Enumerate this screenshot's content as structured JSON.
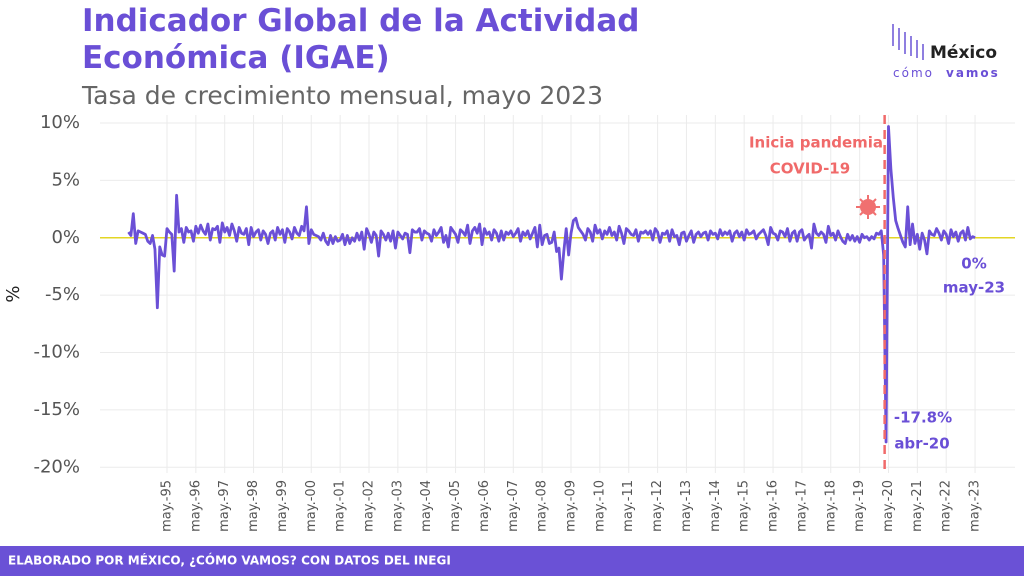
{
  "chart_data": {
    "type": "line",
    "title": [
      "Indicador Global de la Actividad",
      "Económica (IGAE)"
    ],
    "subtitle": "Tasa de crecimiento mensual, mayo 2023",
    "y_label": "%",
    "logo": [
      "México",
      "cómo",
      "vamos"
    ],
    "footer": "ELABORADO POR MÉXICO, ¿CÓMO VAMOS? CON DATOS DEL INEGI",
    "annotations": [
      "Inicia pandemia",
      "COVID-19",
      "0%",
      "may-23",
      "-17.8%",
      "abr-20"
    ],
    "ylim": [
      -20.5,
      10.7
    ],
    "yticks": [
      {
        "value": 10,
        "label": "10%"
      },
      {
        "value": 5,
        "label": "5%"
      },
      {
        "value": 0,
        "label": "0%"
      },
      {
        "value": -5,
        "label": "-5%"
      },
      {
        "value": -10,
        "label": "-10%"
      },
      {
        "value": -15,
        "label": "-15%"
      },
      {
        "value": -20,
        "label": "-20%"
      }
    ],
    "grid": true,
    "zero_line_color": "#e3d624",
    "pandemic_line_color": "#f06a6a",
    "categories": [
      null,
      null,
      null,
      null,
      null,
      null,
      null,
      null,
      null,
      null,
      null,
      null,
      null,
      null,
      null,
      null,
      "may.-95",
      null,
      null,
      null,
      null,
      null,
      null,
      null,
      null,
      null,
      null,
      null,
      "may.-96",
      null,
      null,
      null,
      null,
      null,
      null,
      null,
      null,
      null,
      null,
      null,
      "may.-97",
      null,
      null,
      null,
      null,
      null,
      null,
      null,
      null,
      null,
      null,
      null,
      "may.-98",
      null,
      null,
      null,
      null,
      null,
      null,
      null,
      null,
      null,
      null,
      null,
      "may.-99",
      null,
      null,
      null,
      null,
      null,
      null,
      null,
      null,
      null,
      null,
      null,
      "may.-00",
      null,
      null,
      null,
      null,
      null,
      null,
      null,
      null,
      null,
      null,
      null,
      "may.-01",
      null,
      null,
      null,
      null,
      null,
      null,
      null,
      null,
      null,
      null,
      null,
      "may.-02",
      null,
      null,
      null,
      null,
      null,
      null,
      null,
      null,
      null,
      null,
      null,
      "may.-03",
      null,
      null,
      null,
      null,
      null,
      null,
      null,
      null,
      null,
      null,
      null,
      "may.-04",
      null,
      null,
      null,
      null,
      null,
      null,
      null,
      null,
      null,
      null,
      null,
      "may.-05",
      null,
      null,
      null,
      null,
      null,
      null,
      null,
      null,
      null,
      null,
      null,
      "may.-06",
      null,
      null,
      null,
      null,
      null,
      null,
      null,
      null,
      null,
      null,
      null,
      "may.-07",
      null,
      null,
      null,
      null,
      null,
      null,
      null,
      null,
      null,
      null,
      null,
      "may.-08",
      null,
      null,
      null,
      null,
      null,
      null,
      null,
      null,
      null,
      null,
      null,
      "may.-09",
      null,
      null,
      null,
      null,
      null,
      null,
      null,
      null,
      null,
      null,
      null,
      "may.-10",
      null,
      null,
      null,
      null,
      null,
      null,
      null,
      null,
      null,
      null,
      null,
      "may.-11",
      null,
      null,
      null,
      null,
      null,
      null,
      null,
      null,
      null,
      null,
      null,
      "may.-12",
      null,
      null,
      null,
      null,
      null,
      null,
      null,
      null,
      null,
      null,
      null,
      "may.-13",
      null,
      null,
      null,
      null,
      null,
      null,
      null,
      null,
      null,
      null,
      null,
      "may.-14",
      null,
      null,
      null,
      null,
      null,
      null,
      null,
      null,
      null,
      null,
      null,
      "may.-15",
      null,
      null,
      null,
      null,
      null,
      null,
      null,
      null,
      null,
      null,
      null,
      "may.-16",
      null,
      null,
      null,
      null,
      null,
      null,
      null,
      null,
      null,
      null,
      null,
      "may.-17",
      null,
      null,
      null,
      null,
      null,
      null,
      null,
      null,
      null,
      null,
      null,
      "may.-18",
      null,
      null,
      null,
      null,
      null,
      null,
      null,
      null,
      null,
      null,
      null,
      "may.-19",
      null,
      null,
      null,
      null,
      null,
      null,
      null,
      null,
      null,
      null,
      null,
      "may.-20",
      null,
      null,
      null,
      null,
      null,
      null,
      null,
      null,
      null,
      null,
      null,
      "may.-21",
      null,
      null,
      null,
      null,
      null,
      null,
      null,
      null,
      null,
      null,
      null,
      "may.-22",
      null,
      null,
      null,
      null,
      null,
      null,
      null,
      null,
      null,
      null,
      null,
      "may.-23"
    ],
    "series": [
      {
        "name": "IGAE",
        "color": "#6b50d6",
        "values": [
          0.5,
          0.2,
          2.1,
          -0.5,
          0.6,
          0.5,
          0.4,
          0.3,
          -0.3,
          -0.5,
          0.2,
          -1.0,
          -6.1,
          -0.8,
          -1.5,
          -1.6,
          0.8,
          0.5,
          0.3,
          -2.9,
          3.7,
          0.5,
          0.8,
          -0.4,
          0.9,
          0.5,
          0.6,
          -0.3,
          1.0,
          0.4,
          1.1,
          0.6,
          0.3,
          1.2,
          -0.2,
          0.8,
          0.7,
          1.0,
          -0.4,
          1.3,
          0.5,
          0.9,
          0.2,
          1.2,
          0.6,
          -0.3,
          0.9,
          0.4,
          0.3,
          0.8,
          -0.6,
          0.9,
          0.1,
          0.5,
          0.7,
          -0.2,
          0.6,
          0.3,
          -0.5,
          0.4,
          0.6,
          -0.2,
          0.9,
          0.3,
          0.7,
          -0.4,
          0.8,
          0.5,
          -0.1,
          0.9,
          0.4,
          0.2,
          1.0,
          0.6,
          2.7,
          -0.5,
          0.7,
          0.3,
          0.2,
          0.1,
          -0.2,
          0.4,
          -0.3,
          -0.6,
          0.2,
          -0.5,
          0.1,
          -0.3,
          -0.2,
          0.3,
          -0.6,
          0.2,
          -0.5,
          0.0,
          -0.3,
          0.4,
          -0.2,
          0.5,
          -1.0,
          0.8,
          0.3,
          -0.4,
          0.5,
          0.2,
          -1.6,
          0.6,
          0.3,
          -0.2,
          0.4,
          -0.3,
          0.6,
          -0.9,
          0.5,
          0.2,
          -0.1,
          0.4,
          0.3,
          -1.3,
          0.7,
          0.5,
          0.5,
          0.8,
          -0.2,
          0.6,
          0.4,
          0.3,
          -0.3,
          0.7,
          0.2,
          0.5,
          0.9,
          -0.4,
          0.2,
          -0.8,
          0.9,
          0.6,
          0.3,
          -0.4,
          0.7,
          0.5,
          0.2,
          1.1,
          -0.5,
          0.6,
          0.9,
          0.4,
          1.2,
          -0.6,
          0.8,
          0.3,
          0.5,
          -0.2,
          0.7,
          0.4,
          -0.3,
          0.6,
          -0.2,
          0.5,
          0.3,
          0.6,
          0.1,
          0.4,
          0.8,
          -0.3,
          0.5,
          0.2,
          0.6,
          -0.1,
          0.4,
          0.9,
          -0.8,
          1.1,
          -0.6,
          0.2,
          0.3,
          -0.5,
          -0.4,
          0.5,
          -1.2,
          -0.9,
          -3.6,
          -1.2,
          0.8,
          -1.5,
          0.4,
          1.5,
          1.7,
          0.9,
          0.6,
          0.3,
          -0.2,
          0.8,
          0.5,
          -0.3,
          1.1,
          0.4,
          0.7,
          -0.1,
          0.6,
          0.3,
          0.9,
          0.2,
          0.5,
          -0.2,
          1.0,
          0.4,
          -0.5,
          0.8,
          0.6,
          0.3,
          0.2,
          0.7,
          -0.3,
          0.5,
          0.4,
          0.6,
          0.3,
          0.6,
          -0.2,
          0.8,
          0.5,
          -0.4,
          0.4,
          0.3,
          0.6,
          -0.3,
          0.7,
          0.1,
          0.2,
          -0.6,
          0.4,
          0.5,
          -0.3,
          0.2,
          0.6,
          -0.4,
          0.3,
          0.5,
          0.1,
          0.4,
          0.5,
          -0.2,
          0.6,
          0.3,
          0.4,
          -0.1,
          0.7,
          0.2,
          0.5,
          0.3,
          0.6,
          -0.3,
          0.4,
          0.6,
          0.1,
          0.5,
          -0.2,
          0.7,
          0.3,
          0.4,
          0.6,
          -0.1,
          0.3,
          0.5,
          0.7,
          0.2,
          -0.6,
          0.9,
          0.4,
          0.3,
          -0.2,
          0.6,
          0.5,
          0.1,
          0.8,
          -0.3,
          0.4,
          0.6,
          -0.3,
          0.5,
          0.7,
          -0.2,
          0.1,
          0.3,
          -0.9,
          1.2,
          0.4,
          0.2,
          0.5,
          0.3,
          -0.4,
          1.0,
          0.2,
          0.4,
          -0.2,
          0.6,
          0.1,
          -0.3,
          -0.5,
          0.3,
          -0.2,
          0.2,
          -0.3,
          0.1,
          -0.4,
          0.3,
          0.0,
          0.1,
          -0.2,
          0.1,
          -0.1,
          0.4,
          0.3,
          0.6,
          -1.5,
          -17.8,
          9.7,
          6.0,
          3.5,
          1.5,
          0.8,
          0.2,
          -0.4,
          -0.8,
          2.7,
          -0.6,
          1.2,
          -0.5,
          0.3,
          -1.0,
          0.4,
          -0.2,
          -1.4,
          0.6,
          0.3,
          0.2,
          0.8,
          0.4,
          -0.2,
          0.6,
          0.3,
          -0.5,
          0.7,
          0.1,
          0.5,
          -0.3,
          0.4,
          0.6,
          -0.2,
          0.9,
          -0.1,
          0.1,
          0.0
        ]
      }
    ]
  }
}
